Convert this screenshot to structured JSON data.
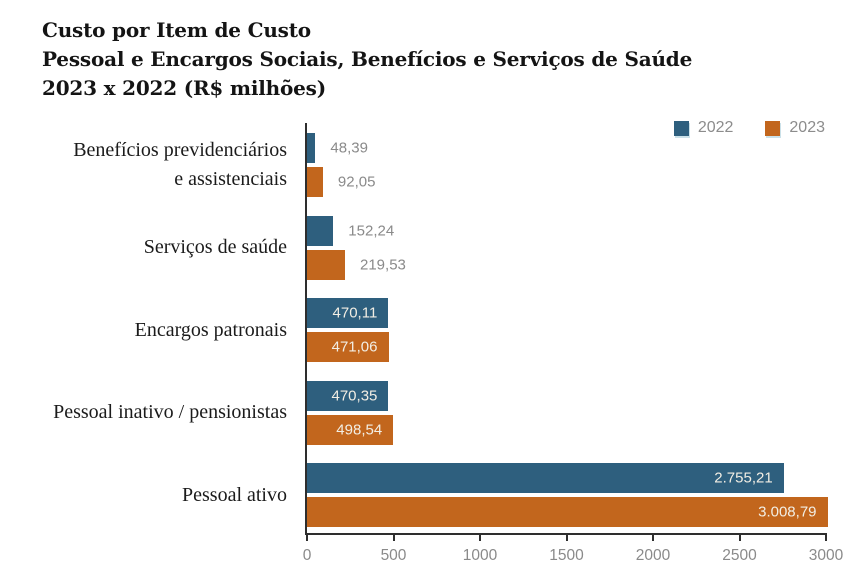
{
  "title": {
    "line1": "Custo por Item de Custo",
    "line2": "Pessoal e Encargos Sociais, Benefícios e Serviços de Saúde",
    "line3": "2023 x 2022 (R$ milhões)"
  },
  "colors": {
    "series_2022": "#2e5f7e",
    "series_2023": "#c2661d",
    "axis": "#2e2e2e",
    "muted_text": "#8a8a8a",
    "inside_bar_text": "#f2eee4",
    "category_text": "#1b1b1b"
  },
  "chart_data": {
    "type": "bar",
    "orientation": "horizontal",
    "title": "Custo por Item de Custo — Pessoal e Encargos Sociais, Benefícios e Serviços de Saúde — 2023 x 2022 (R$ milhões)",
    "xlabel": "",
    "ylabel": "",
    "grid": false,
    "legend_position": "top-right",
    "xlim": [
      0,
      3000
    ],
    "x_ticks": [
      "0",
      "500",
      "1000",
      "1500",
      "2000",
      "2500",
      "3000"
    ],
    "categories": [
      "Benefícios previdenciários e assistenciais",
      "Serviços de saúde",
      "Encargos patronais",
      "Pessoal inativo / pensionistas",
      "Pessoal ativo"
    ],
    "category_display": [
      [
        "Benefícios previdenciários",
        "e assistenciais"
      ],
      [
        "Serviços de saúde"
      ],
      [
        "Encargos patronais"
      ],
      [
        "Pessoal inativo / pensionistas"
      ],
      [
        "Pessoal ativo"
      ]
    ],
    "series": [
      {
        "name": "2022",
        "color": "#2e5f7e",
        "values": [
          48.39,
          152.24,
          470.11,
          470.35,
          2755.21
        ],
        "labels": [
          "48,39",
          "152,24",
          "470,11",
          "470,35",
          "2.755,21"
        ]
      },
      {
        "name": "2023",
        "color": "#c2661d",
        "values": [
          92.05,
          219.53,
          471.06,
          498.54,
          3008.79
        ],
        "labels": [
          "92,05",
          "219,53",
          "471,06",
          "498,54",
          "3.008,79"
        ]
      }
    ]
  }
}
